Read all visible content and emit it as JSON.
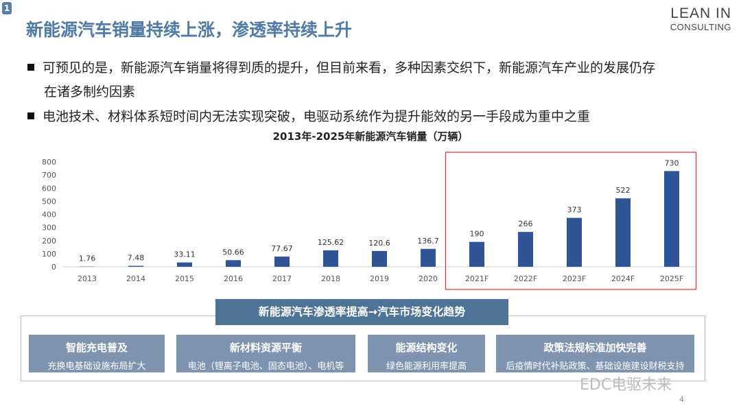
{
  "slide": {
    "badge": "1",
    "title": "新能源汽车销量持续上涨，渗透率持续上升",
    "logo_line1": "LEAN IN",
    "logo_line2": "CONSULTING",
    "bullets": [
      "可预见的是，新能源汽车销量将得到质的提升，但目前来看，多种因素交织下，新能源汽车产业的发展仍存",
      "在诸多制约因素",
      "电池技术、材料体系短时间内无法实现突破，电驱动系统作为提升能效的另一手段成为重中之重"
    ],
    "page_number": "4",
    "watermark": "EDC电驱未来"
  },
  "chart_data": {
    "type": "bar",
    "title": "2013年-2025年新能源汽车销量（万辆）",
    "categories": [
      "2013",
      "2014",
      "2015",
      "2016",
      "2017",
      "2018",
      "2019",
      "2020",
      "2021F",
      "2022F",
      "2023F",
      "2024F",
      "2025F"
    ],
    "values": [
      1.76,
      7.48,
      33.11,
      50.66,
      77.67,
      125.62,
      120.6,
      136.7,
      190,
      266,
      373,
      522,
      730
    ],
    "value_labels": [
      "1.76",
      "7.48",
      "33.11",
      "50.66",
      "77.67",
      "125.62",
      "120.6",
      "136.7",
      "190",
      "266",
      "373",
      "522",
      "730"
    ],
    "ylim": [
      0,
      800
    ],
    "yticks": [
      "0",
      "100",
      "200",
      "300",
      "400",
      "500",
      "600",
      "700",
      "800"
    ],
    "grid": false,
    "bar_color": "#2f5597",
    "highlight": {
      "from": "2021F",
      "to": "2025F",
      "color": "#e03030"
    }
  },
  "trends": {
    "header": "新能源汽车渗透率提高→汽车市场变化趋势",
    "cards": [
      {
        "title": "智能充电普及",
        "sub": "充换电基础设施布局扩大"
      },
      {
        "title": "新材料资源平衡",
        "sub": "电池（锂离子电池、固态电池）、电机等"
      },
      {
        "title": "能源结构变化",
        "sub": "绿色能源利用率提高"
      },
      {
        "title": "政策法规标准加快完善",
        "sub": "后疫情时代补贴政策、基础设施建设财税支持"
      }
    ]
  }
}
